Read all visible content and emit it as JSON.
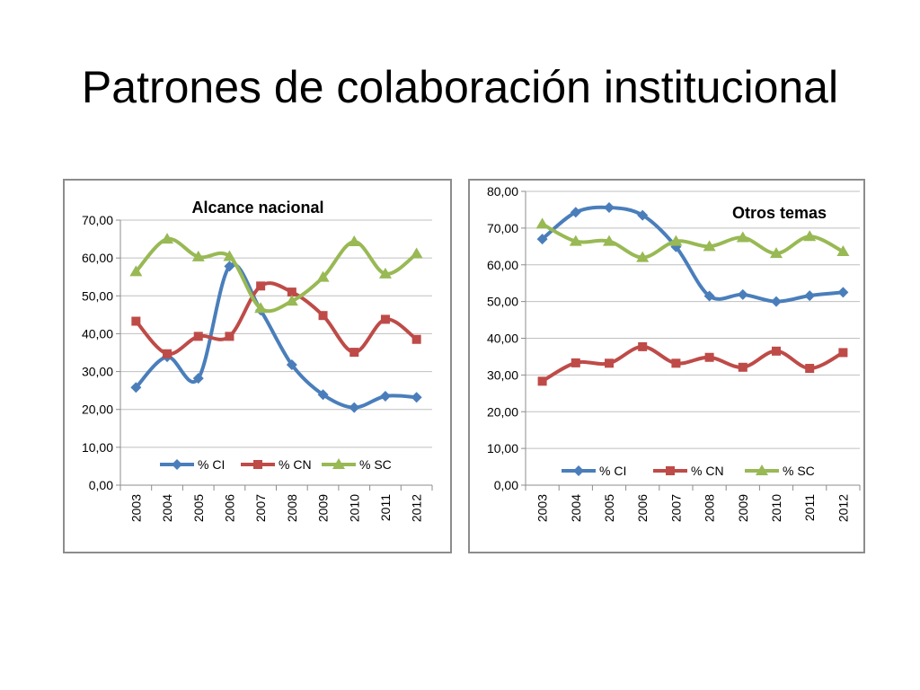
{
  "slide": {
    "title": "Patrones de colaboración institucional"
  },
  "chart_data": [
    {
      "type": "line",
      "title": "Alcance nacional",
      "categories": [
        "2003",
        "2004",
        "2005",
        "2006",
        "2007",
        "2008",
        "2009",
        "2010",
        "2011",
        "2012"
      ],
      "ylim": [
        0,
        70
      ],
      "yticks": [
        "0,00",
        "10,00",
        "20,00",
        "30,00",
        "40,00",
        "50,00",
        "60,00",
        "70,00"
      ],
      "grid": true,
      "legend_position": "bottom",
      "smooth": true,
      "series": [
        {
          "name": "% CI",
          "color": "#4a7ebb",
          "marker": "diamond",
          "values": [
            25.8,
            33.9,
            28.2,
            57.8,
            46.2,
            31.8,
            23.9,
            20.5,
            23.5,
            23.2
          ]
        },
        {
          "name": "% CN",
          "color": "#be4b48",
          "marker": "square",
          "values": [
            43.3,
            34.7,
            39.3,
            39.3,
            52.6,
            51.0,
            44.8,
            35.1,
            43.8,
            38.5
          ]
        },
        {
          "name": "% SC",
          "color": "#98b954",
          "marker": "triangle",
          "values": [
            56.4,
            65.0,
            60.3,
            60.4,
            46.7,
            48.6,
            54.9,
            64.3,
            55.8,
            61.1
          ]
        }
      ]
    },
    {
      "type": "line",
      "title": "Otros temas",
      "categories": [
        "2003",
        "2004",
        "2005",
        "2006",
        "2007",
        "2008",
        "2009",
        "2010",
        "2011",
        "2012"
      ],
      "ylim": [
        0,
        80
      ],
      "yticks": [
        "0,00",
        "10,00",
        "20,00",
        "30,00",
        "40,00",
        "50,00",
        "60,00",
        "70,00",
        "80,00"
      ],
      "grid": true,
      "legend_position": "bottom",
      "smooth": true,
      "series": [
        {
          "name": "% CI",
          "color": "#4a7ebb",
          "marker": "diamond",
          "values": [
            67.0,
            74.3,
            75.6,
            73.5,
            64.9,
            51.5,
            51.9,
            50.0,
            51.6,
            52.5
          ]
        },
        {
          "name": "% CN",
          "color": "#be4b48",
          "marker": "square",
          "values": [
            28.3,
            33.3,
            33.2,
            37.7,
            33.2,
            34.8,
            32.1,
            36.5,
            31.8,
            36.1
          ]
        },
        {
          "name": "% SC",
          "color": "#98b954",
          "marker": "triangle",
          "values": [
            71.1,
            66.4,
            66.4,
            62.0,
            66.4,
            65.0,
            67.4,
            63.1,
            67.7,
            63.6
          ]
        }
      ]
    }
  ]
}
